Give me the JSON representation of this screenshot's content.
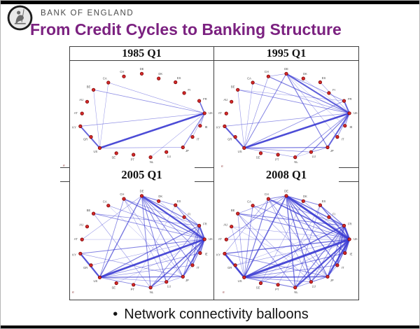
{
  "header": {
    "brand": "BANK OF ENGLAND",
    "title": "From Credit Cycles to Banking Structure",
    "title_color": "#7b2180"
  },
  "bullet": {
    "marker": "•",
    "text": "Network connectivity balloons"
  },
  "network": {
    "node_order": [
      "DE",
      "DK",
      "ES",
      "FI",
      "FR",
      "UK",
      "IE",
      "IT",
      "JP",
      "LU",
      "NL",
      "PT",
      "SE",
      "US",
      "GR",
      "KY",
      "AT",
      "AU",
      "BE",
      "CA",
      "CH"
    ],
    "node_color": "#d42a2a",
    "node_border": "#7c0000",
    "edge_color": "#3939d2",
    "label_color": "#4a4a4a"
  },
  "panels": [
    {
      "id": "1985q1",
      "title": "1985 Q1",
      "edges": [
        [
          "UK",
          "US",
          3.0
        ],
        [
          "US",
          "KY",
          2.2
        ],
        [
          "UK",
          "FR",
          1.9
        ],
        [
          "UK",
          "JP",
          1.3
        ],
        [
          "UK",
          "IE",
          1.0
        ],
        [
          "UK",
          "BE",
          0.9
        ],
        [
          "US",
          "JP",
          0.8
        ],
        [
          "UK",
          "KY",
          0.8
        ],
        [
          "UK",
          "CA",
          0.7
        ],
        [
          "US",
          "BE",
          0.6
        ],
        [
          "US",
          "CA",
          0.6
        ],
        [
          "UK",
          "IT",
          0.6
        ],
        [
          "UK",
          "NL",
          0.6
        ],
        [
          "US",
          "GR",
          0.5
        ]
      ]
    },
    {
      "id": "1995q1",
      "title": "1995 Q1",
      "edges": [
        [
          "UK",
          "US",
          3.0
        ],
        [
          "UK",
          "DE",
          2.4
        ],
        [
          "US",
          "KY",
          2.4
        ],
        [
          "UK",
          "JP",
          2.3
        ],
        [
          "UK",
          "FR",
          2.2
        ],
        [
          "DE",
          "JP",
          1.4
        ],
        [
          "US",
          "JP",
          1.4
        ],
        [
          "UK",
          "LU",
          1.4
        ],
        [
          "CH",
          "UK",
          1.4
        ],
        [
          "UK",
          "IE",
          1.2
        ],
        [
          "DE",
          "US",
          1.2
        ],
        [
          "UK",
          "IT",
          1.0
        ],
        [
          "UK",
          "NL",
          1.0
        ],
        [
          "FR",
          "US",
          1.0
        ],
        [
          "DE",
          "FR",
          1.0
        ],
        [
          "BE",
          "UK",
          1.0
        ],
        [
          "US",
          "LU",
          0.9
        ],
        [
          "UK",
          "KY",
          0.9
        ],
        [
          "CA",
          "UK",
          0.8
        ],
        [
          "CH",
          "US",
          0.8
        ],
        [
          "CH",
          "DE",
          0.8
        ],
        [
          "JP",
          "LU",
          0.7
        ],
        [
          "US",
          "NL",
          0.7
        ],
        [
          "BE",
          "US",
          0.7
        ],
        [
          "ES",
          "UK",
          0.7
        ],
        [
          "IT",
          "DE",
          0.6
        ],
        [
          "BE",
          "FR",
          0.6
        ],
        [
          "CA",
          "US",
          0.6
        ],
        [
          "DK",
          "UK",
          0.5
        ],
        [
          "IE",
          "DE",
          0.5
        ],
        [
          "NL",
          "JP",
          0.5
        ]
      ]
    },
    {
      "id": "2005q1",
      "title": "2005 Q1",
      "edges": [
        [
          "UK",
          "US",
          3.2
        ],
        [
          "UK",
          "DE",
          2.8
        ],
        [
          "UK",
          "FR",
          2.6
        ],
        [
          "US",
          "KY",
          2.6
        ],
        [
          "UK",
          "JP",
          2.2
        ],
        [
          "UK",
          "NL",
          2.0
        ],
        [
          "UK",
          "IE",
          1.8
        ],
        [
          "UK",
          "CH",
          1.6
        ],
        [
          "UK",
          "LU",
          1.4
        ],
        [
          "UK",
          "IT",
          1.4
        ],
        [
          "UK",
          "ES",
          1.2
        ],
        [
          "UK",
          "KY",
          1.2
        ],
        [
          "UK",
          "BE",
          1.0
        ],
        [
          "UK",
          "CA",
          0.8
        ],
        [
          "UK",
          "DK",
          0.6
        ],
        [
          "UK",
          "GR",
          0.6
        ],
        [
          "UK",
          "SE",
          0.5
        ],
        [
          "UK",
          "AT",
          0.5
        ],
        [
          "DE",
          "US",
          1.6
        ],
        [
          "DE",
          "FR",
          1.4
        ],
        [
          "DE",
          "NL",
          1.2
        ],
        [
          "DE",
          "IT",
          1.2
        ],
        [
          "DE",
          "LU",
          1.2
        ],
        [
          "DE",
          "JP",
          1.2
        ],
        [
          "DE",
          "ES",
          1.0
        ],
        [
          "DE",
          "IE",
          1.0
        ],
        [
          "DE",
          "AT",
          0.7
        ],
        [
          "DE",
          "DK",
          0.6
        ],
        [
          "FR",
          "US",
          1.4
        ],
        [
          "FR",
          "IT",
          1.2
        ],
        [
          "FR",
          "ES",
          1.0
        ],
        [
          "FR",
          "NL",
          1.0
        ],
        [
          "FR",
          "BE",
          0.9
        ],
        [
          "FR",
          "JP",
          1.0
        ],
        [
          "FR",
          "CH",
          0.8
        ],
        [
          "FR",
          "IE",
          0.7
        ],
        [
          "US",
          "JP",
          1.6
        ],
        [
          "US",
          "NL",
          1.0
        ],
        [
          "US",
          "CH",
          1.0
        ],
        [
          "US",
          "IE",
          0.9
        ],
        [
          "US",
          "IT",
          0.8
        ],
        [
          "US",
          "LU",
          0.8
        ],
        [
          "US",
          "GR",
          0.6
        ],
        [
          "KY",
          "JP",
          0.8
        ],
        [
          "KY",
          "GR",
          0.6
        ],
        [
          "NL",
          "BE",
          0.7
        ],
        [
          "NL",
          "JP",
          0.7
        ],
        [
          "CH",
          "JP",
          0.7
        ],
        [
          "CH",
          "LU",
          0.6
        ],
        [
          "CA",
          "JP",
          0.5
        ],
        [
          "IT",
          "JP",
          0.6
        ],
        [
          "ES",
          "PT",
          0.5
        ]
      ]
    },
    {
      "id": "2008q1",
      "title": "2008 Q1",
      "edges": [
        [
          "UK",
          "US",
          3.6
        ],
        [
          "UK",
          "DE",
          3.4
        ],
        [
          "UK",
          "FR",
          3.0
        ],
        [
          "US",
          "KY",
          3.0
        ],
        [
          "UK",
          "JP",
          2.8
        ],
        [
          "UK",
          "NL",
          2.6
        ],
        [
          "UK",
          "IE",
          2.4
        ],
        [
          "UK",
          "CH",
          2.0
        ],
        [
          "UK",
          "IT",
          1.8
        ],
        [
          "UK",
          "ES",
          1.8
        ],
        [
          "UK",
          "LU",
          1.6
        ],
        [
          "UK",
          "KY",
          1.6
        ],
        [
          "UK",
          "BE",
          1.2
        ],
        [
          "UK",
          "CA",
          1.0
        ],
        [
          "UK",
          "DK",
          0.8
        ],
        [
          "UK",
          "SE",
          0.7
        ],
        [
          "UK",
          "GR",
          0.7
        ],
        [
          "UK",
          "FI",
          0.6
        ],
        [
          "UK",
          "AU",
          0.6
        ],
        [
          "DE",
          "US",
          2.0
        ],
        [
          "DE",
          "FR",
          1.8
        ],
        [
          "DE",
          "NL",
          1.6
        ],
        [
          "DE",
          "IT",
          1.6
        ],
        [
          "DE",
          "LU",
          1.6
        ],
        [
          "DE",
          "IE",
          1.4
        ],
        [
          "DE",
          "JP",
          1.4
        ],
        [
          "DE",
          "ES",
          1.2
        ],
        [
          "DE",
          "CH",
          1.2
        ],
        [
          "DE",
          "AT",
          1.0
        ],
        [
          "DE",
          "DK",
          0.8
        ],
        [
          "DE",
          "BE",
          0.8
        ],
        [
          "FR",
          "US",
          1.8
        ],
        [
          "FR",
          "IT",
          1.6
        ],
        [
          "FR",
          "ES",
          1.4
        ],
        [
          "FR",
          "NL",
          1.4
        ],
        [
          "FR",
          "BE",
          1.2
        ],
        [
          "FR",
          "JP",
          1.2
        ],
        [
          "FR",
          "CH",
          1.0
        ],
        [
          "FR",
          "LU",
          0.9
        ],
        [
          "FR",
          "IE",
          0.9
        ],
        [
          "FR",
          "GR",
          0.5
        ],
        [
          "US",
          "JP",
          2.0
        ],
        [
          "US",
          "NL",
          1.4
        ],
        [
          "US",
          "CH",
          1.4
        ],
        [
          "US",
          "IE",
          1.2
        ],
        [
          "US",
          "IT",
          1.0
        ],
        [
          "US",
          "LU",
          1.0
        ],
        [
          "US",
          "CA",
          1.0
        ],
        [
          "US",
          "GR",
          0.8
        ],
        [
          "US",
          "BE",
          0.8
        ],
        [
          "US",
          "AU",
          0.6
        ],
        [
          "KY",
          "JP",
          1.0
        ],
        [
          "KY",
          "GR",
          0.8
        ],
        [
          "KY",
          "CH",
          0.7
        ],
        [
          "NL",
          "BE",
          1.0
        ],
        [
          "NL",
          "JP",
          0.9
        ],
        [
          "NL",
          "ES",
          0.8
        ],
        [
          "CH",
          "JP",
          0.9
        ],
        [
          "CH",
          "LU",
          0.8
        ],
        [
          "IT",
          "JP",
          0.8
        ],
        [
          "JP",
          "LU",
          0.8
        ],
        [
          "JP",
          "CA",
          0.6
        ],
        [
          "JP",
          "AU",
          0.5
        ],
        [
          "ES",
          "PT",
          0.6
        ],
        [
          "SE",
          "DK",
          0.6
        ],
        [
          "SE",
          "FI",
          0.5
        ],
        [
          "AT",
          "UK",
          0.7
        ],
        [
          "BE",
          "LU",
          0.6
        ]
      ]
    }
  ],
  "annotations": {
    "marks": [
      "e",
      "e",
      "e",
      "e"
    ]
  }
}
